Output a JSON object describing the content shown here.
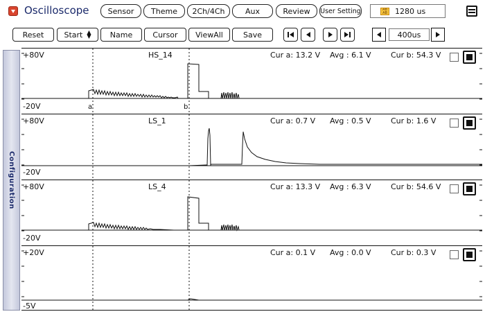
{
  "app": {
    "title": "Oscilloscope",
    "icon": "dropdown-icon"
  },
  "top_toolbar": {
    "sensor": "Sensor",
    "theme": "Theme",
    "channels": "2Ch/4Ch",
    "aux": "Aux",
    "review": "Review",
    "user_setting": "User Setting",
    "time_readout": "1280 us"
  },
  "second_toolbar": {
    "reset": "Reset",
    "start": "Start",
    "name": "Name",
    "cursor": "Cursor",
    "view_all": "ViewAll",
    "save": "Save",
    "timebase": "400us"
  },
  "side_tab": {
    "label": "Configuration"
  },
  "channels": [
    {
      "name": "HS_14",
      "top_label": "+80V",
      "bottom_label": "-20V",
      "cur_a": "Cur a: 13.2 V",
      "avg": "Avg  : 6.1 V",
      "cur_b": "Cur b: 54.3 V",
      "cursor_a_label": "a",
      "cursor_b_label": "b"
    },
    {
      "name": "LS_1",
      "top_label": "+80V",
      "bottom_label": "-20V",
      "cur_a": "Cur a: 0.7 V",
      "avg": "Avg  : 0.5 V",
      "cur_b": "Cur b: 1.6 V"
    },
    {
      "name": "LS_4",
      "top_label": "+80V",
      "bottom_label": "-20V",
      "cur_a": "Cur a: 13.3 V",
      "avg": "Avg  : 6.3 V",
      "cur_b": "Cur b: 54.6 V"
    },
    {
      "name": "",
      "top_label": "+20V",
      "bottom_label": "-5V",
      "cur_a": "Cur a: 0.1 V",
      "avg": "Avg  : 0.0 V",
      "cur_b": "Cur b: 0.3 V"
    }
  ]
}
